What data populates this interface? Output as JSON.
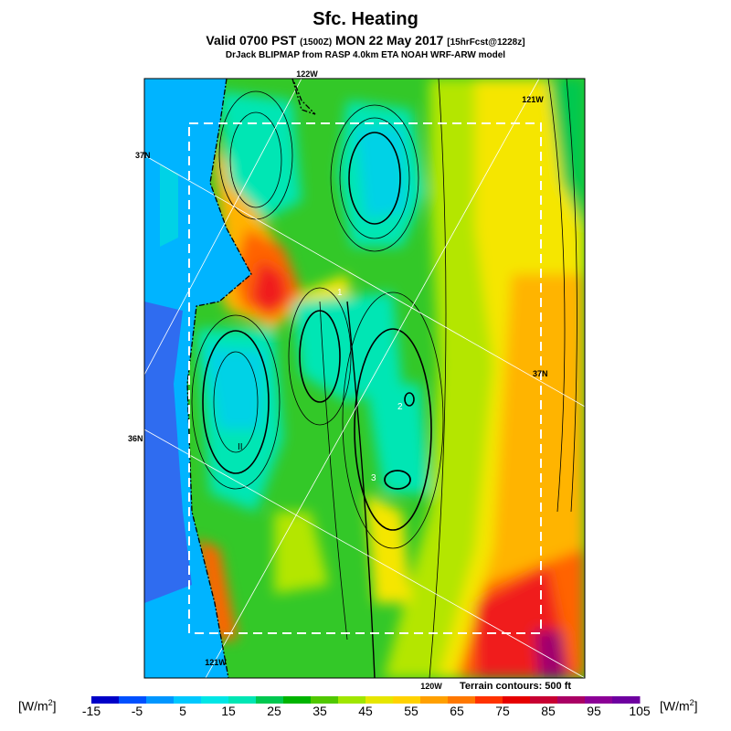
{
  "header": {
    "title": "Sfc. Heating",
    "valid_line": "Valid 0700 PST",
    "valid_z": "(1500Z)",
    "valid_date": "MON 22 May 2017",
    "forecast": "[15hrFcst@1228z]",
    "model_line": "DrJack BLIPMAP from RASP 4.0km ETA NOAH WRF-ARW model"
  },
  "map": {
    "grid_labels": {
      "lon_122_top": "122W",
      "lon_121_top": "121W",
      "lat_37_left": "37N",
      "lat_37_right": "37N",
      "lat_36_left": "36N",
      "lon_121_bottom": "121W",
      "lon_120_bottom": "120W"
    },
    "site_labels": [
      "1",
      "2",
      "3",
      "II"
    ],
    "terrain_note": "Terrain contours: 500 ft",
    "colors": {
      "ocean_deep": "#2f6cf0",
      "ocean": "#00b4ff",
      "cold": "#00d2e6",
      "cool": "#00e6b4",
      "mild": "#00c850",
      "green": "#33c828",
      "yellowgreen": "#b4e600",
      "yellow": "#f5e600",
      "orange": "#ffb400",
      "redorange": "#ff6400",
      "red": "#f01e1e",
      "purple": "#a0006e"
    }
  },
  "colorbar": {
    "unit_left": "[W/m",
    "unit_right": "[W/m",
    "unit_sup": "2",
    "unit_close": "]",
    "ticks": [
      "-15",
      "-5",
      "5",
      "15",
      "25",
      "35",
      "45",
      "55",
      "65",
      "75",
      "85",
      "95",
      "105"
    ],
    "colors": [
      "#0000c8",
      "#0050ff",
      "#0096ff",
      "#00c8ff",
      "#00e6e6",
      "#00e6b4",
      "#00c850",
      "#00b400",
      "#50c800",
      "#a0e600",
      "#e6e600",
      "#ffd200",
      "#ffa000",
      "#ff7800",
      "#ff3200",
      "#e60000",
      "#c80032",
      "#aa0064",
      "#8c0096",
      "#6e00a0"
    ]
  }
}
